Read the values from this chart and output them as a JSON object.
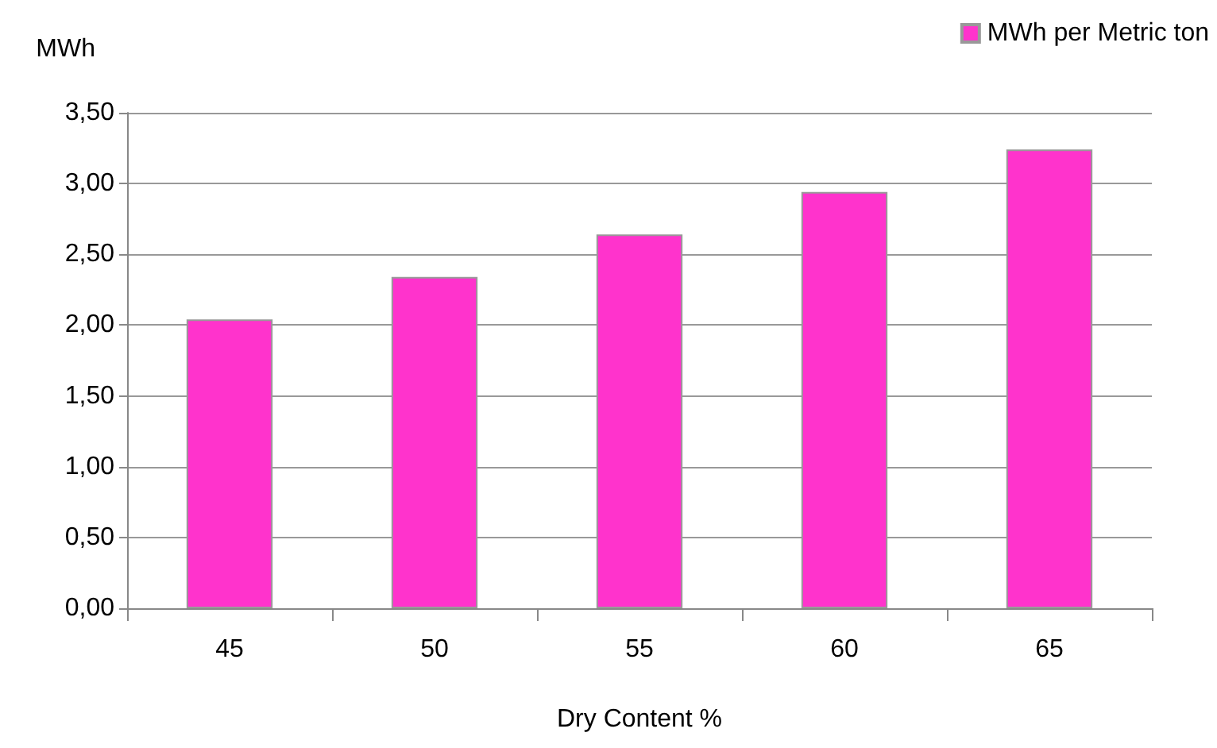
{
  "chart_data": {
    "type": "bar",
    "xlabel": "Dry Content %",
    "ylabel": "MWh",
    "categories": [
      "45",
      "50",
      "55",
      "60",
      "65"
    ],
    "series": [
      {
        "name": "MWh per Metric ton",
        "color": "#ff33cc",
        "values": [
          2.04,
          2.34,
          2.64,
          2.94,
          3.24
        ]
      }
    ],
    "ylim": [
      0,
      3.5
    ],
    "yticks": [
      {
        "value": 0,
        "label": "0,00"
      },
      {
        "value": 0.5,
        "label": "0,50"
      },
      {
        "value": 1,
        "label": "1,00"
      },
      {
        "value": 1.5,
        "label": "1,50"
      },
      {
        "value": 2,
        "label": "2,00"
      },
      {
        "value": 2.5,
        "label": "2,50"
      },
      {
        "value": 3,
        "label": "3,00"
      },
      {
        "value": 3.5,
        "label": "3,50"
      }
    ],
    "grid": "y",
    "legend": "top right"
  }
}
